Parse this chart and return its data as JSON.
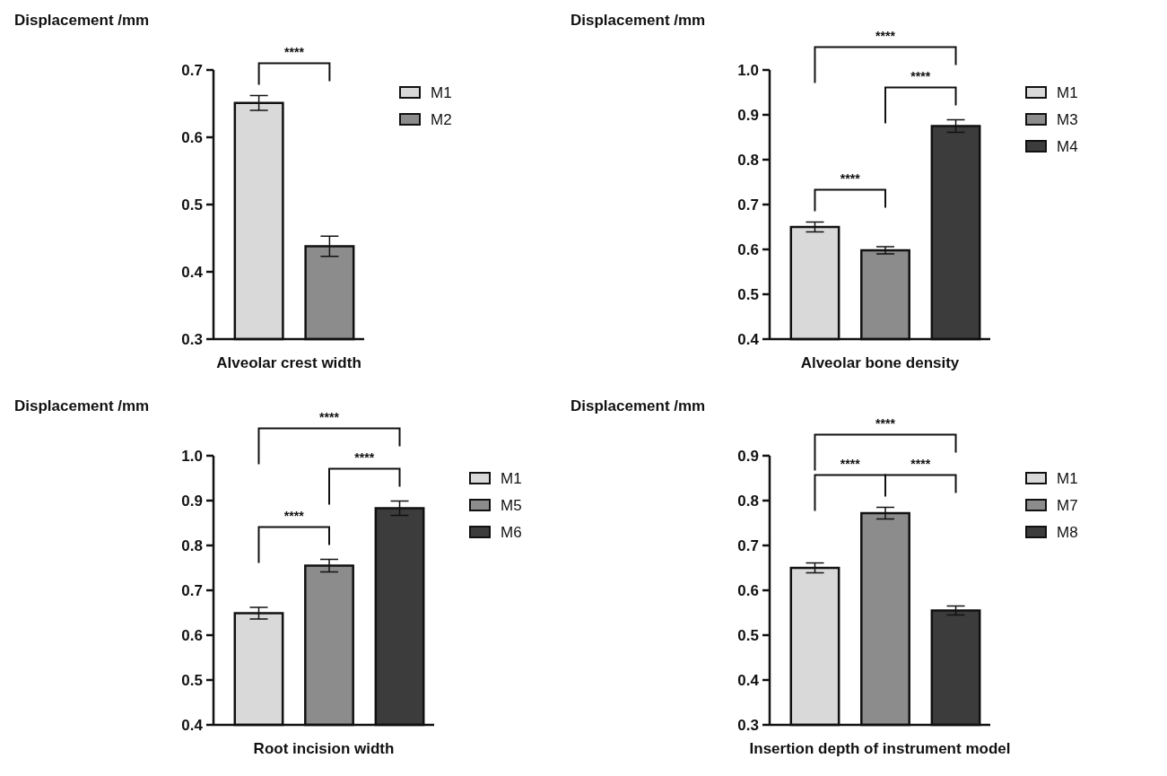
{
  "chart_data": [
    {
      "type": "bar",
      "ylabel": "Displacement /mm",
      "xlabel": "Alveolar crest width",
      "categories": [
        null,
        null
      ],
      "legend": "right",
      "ylim": [
        0.3,
        0.7
      ],
      "yticks": [
        0.3,
        0.4,
        0.5,
        0.6,
        0.7
      ],
      "annotations": [
        "****"
      ],
      "series": [
        {
          "name": "M1",
          "color": "#d9d9d9",
          "values": [
            0.651,
            null
          ],
          "errors": [
            0.011,
            null
          ]
        },
        {
          "name": "M2",
          "color": "#8c8c8c",
          "values": [
            null,
            0.438
          ],
          "errors": [
            null,
            0.015
          ]
        }
      ]
    },
    {
      "type": "bar",
      "ylabel": "Displacement /mm",
      "xlabel": "Alveolar bone density",
      "categories": [
        null,
        null,
        null
      ],
      "legend": "right",
      "ylim": [
        0.4,
        1.0
      ],
      "yticks": [
        0.4,
        0.5,
        0.6,
        0.7,
        0.8,
        0.9,
        {
          "value": 1.0,
          "label": "1.0"
        }
      ],
      "annotations": [
        "****",
        "****",
        "****"
      ],
      "series": [
        {
          "name": "M1",
          "color": "#d9d9d9",
          "values": [
            0.65,
            null,
            null
          ],
          "errors": [
            0.011,
            null,
            null
          ]
        },
        {
          "name": "M3",
          "color": "#8c8c8c",
          "values": [
            null,
            0.598,
            null
          ],
          "errors": [
            null,
            0.008,
            null
          ]
        },
        {
          "name": "M4",
          "color": "#3c3c3c",
          "values": [
            null,
            null,
            0.875
          ],
          "errors": [
            null,
            null,
            0.014
          ]
        }
      ]
    },
    {
      "type": "bar",
      "ylabel": "Displacement /mm",
      "xlabel": "Root incision width",
      "categories": [
        null,
        null,
        null
      ],
      "legend": "right",
      "ylim": [
        0.4,
        1.0
      ],
      "yticks": [
        0.4,
        0.5,
        0.6,
        0.7,
        0.8,
        0.9,
        {
          "value": 1.0,
          "label": "1.0"
        }
      ],
      "annotations": [
        "****",
        "****",
        "****"
      ],
      "series": [
        {
          "name": "M1",
          "color": "#d9d9d9",
          "values": [
            0.649,
            null,
            null
          ],
          "errors": [
            0.013,
            null,
            null
          ]
        },
        {
          "name": "M5",
          "color": "#8c8c8c",
          "values": [
            null,
            0.755,
            null
          ],
          "errors": [
            null,
            0.014,
            null
          ]
        },
        {
          "name": "M6",
          "color": "#3c3c3c",
          "values": [
            null,
            null,
            0.883
          ],
          "errors": [
            null,
            null,
            0.016
          ]
        }
      ]
    },
    {
      "type": "bar",
      "ylabel": "Displacement /mm",
      "xlabel": "Insertion depth of instrument model",
      "categories": [
        null,
        null,
        null
      ],
      "legend": "right",
      "ylim": [
        0.3,
        0.9
      ],
      "yticks": [
        0.3,
        0.4,
        0.5,
        0.6,
        0.7,
        0.8,
        0.9
      ],
      "annotations": [
        "****",
        "****",
        "****"
      ],
      "series": [
        {
          "name": "M1",
          "color": "#d9d9d9",
          "values": [
            0.65,
            null,
            null
          ],
          "errors": [
            0.011,
            null,
            null
          ]
        },
        {
          "name": "M7",
          "color": "#8c8c8c",
          "values": [
            null,
            0.772,
            null
          ],
          "errors": [
            null,
            0.013,
            null
          ]
        },
        {
          "name": "M8",
          "color": "#3c3c3c",
          "values": [
            null,
            null,
            0.555
          ],
          "errors": [
            null,
            null,
            0.01
          ]
        }
      ]
    }
  ]
}
